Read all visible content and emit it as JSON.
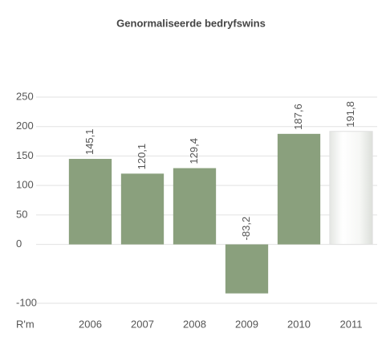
{
  "chart_data": {
    "type": "bar",
    "title": "Genormaliseerde bedryfswins",
    "unit_label": "R'm",
    "categories": [
      "2006",
      "2007",
      "2008",
      "2009",
      "2010",
      "2011"
    ],
    "values": [
      145.1,
      120.1,
      129.4,
      -83.2,
      187.6,
      191.8
    ],
    "value_labels": [
      "145,1",
      "120,1",
      "129,4",
      "-83,2",
      "187,6",
      "191,8"
    ],
    "color": "#8aa07d",
    "ylim": [
      -100,
      250
    ],
    "yticks": [
      -100,
      0,
      50,
      100,
      150,
      200,
      250
    ],
    "grid": true
  }
}
